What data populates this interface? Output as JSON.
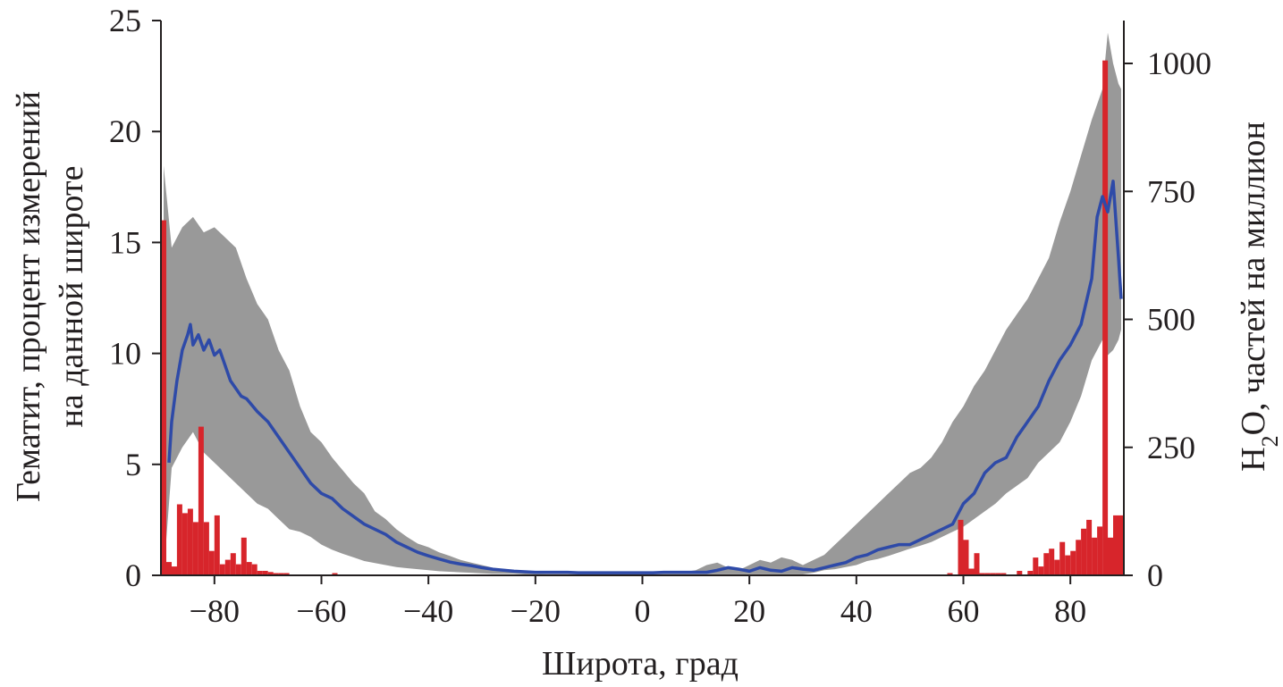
{
  "chart_data": {
    "type": "bar+line",
    "xlabel": "Широта, град",
    "ylabel_left_lines": [
      "Гематит, процент измерений",
      "на данной широте"
    ],
    "ylabel_right": {
      "base": "H",
      "sub": "2",
      "rest": "O, частей на миллион"
    },
    "xlim": [
      -90,
      90
    ],
    "ylim_left": [
      0,
      25
    ],
    "ylim_right": [
      0,
      1000
    ],
    "x_ticks": [
      {
        "v": -80,
        "t": "−80"
      },
      {
        "v": -60,
        "t": "−60"
      },
      {
        "v": -40,
        "t": "−40"
      },
      {
        "v": -20,
        "t": "−20"
      },
      {
        "v": 0,
        "t": "0"
      },
      {
        "v": 20,
        "t": "20"
      },
      {
        "v": 40,
        "t": "40"
      },
      {
        "v": 60,
        "t": "60"
      },
      {
        "v": 80,
        "t": "80"
      }
    ],
    "y_left_ticks": [
      {
        "v": 0,
        "t": "0"
      },
      {
        "v": 5,
        "t": "5"
      },
      {
        "v": 10,
        "t": "10"
      },
      {
        "v": 15,
        "t": "15"
      },
      {
        "v": 20,
        "t": "20"
      },
      {
        "v": 25,
        "t": "25"
      }
    ],
    "y_right_ticks": [
      {
        "v": 0,
        "t": "0"
      },
      {
        "v": 250,
        "t": "250"
      },
      {
        "v": 500,
        "t": "500"
      },
      {
        "v": 750,
        "t": "750"
      },
      {
        "v": 1000,
        "t": "1000"
      }
    ],
    "series": [
      {
        "kind": "bar",
        "axis": "left",
        "color": "#d7252b",
        "bar_width": 1.0,
        "points": [
          {
            "x": -89.5,
            "y": 16.0
          },
          {
            "x": -88.5,
            "y": 0.6
          },
          {
            "x": -87.5,
            "y": 0.4
          },
          {
            "x": -86.5,
            "y": 3.2
          },
          {
            "x": -85.5,
            "y": 2.8
          },
          {
            "x": -84.5,
            "y": 3.0
          },
          {
            "x": -83.5,
            "y": 2.4
          },
          {
            "x": -82.5,
            "y": 6.7
          },
          {
            "x": -81.5,
            "y": 2.4
          },
          {
            "x": -80.5,
            "y": 1.1
          },
          {
            "x": -79.5,
            "y": 2.7
          },
          {
            "x": -78.5,
            "y": 0.5
          },
          {
            "x": -77.5,
            "y": 0.7
          },
          {
            "x": -76.5,
            "y": 1.0
          },
          {
            "x": -75.5,
            "y": 0.5
          },
          {
            "x": -74.5,
            "y": 1.7
          },
          {
            "x": -73.5,
            "y": 0.6
          },
          {
            "x": -72.5,
            "y": 0.5
          },
          {
            "x": -71.5,
            "y": 0.2
          },
          {
            "x": -70.5,
            "y": 0.2
          },
          {
            "x": -69.5,
            "y": 0.15
          },
          {
            "x": -68.5,
            "y": 0.1
          },
          {
            "x": -67.5,
            "y": 0.1
          },
          {
            "x": -66.5,
            "y": 0.1
          },
          {
            "x": -57.5,
            "y": 0.1
          },
          {
            "x": 57.5,
            "y": 0.1
          },
          {
            "x": 59.5,
            "y": 2.5
          },
          {
            "x": 60.5,
            "y": 1.6
          },
          {
            "x": 61.5,
            "y": 0.3
          },
          {
            "x": 62.5,
            "y": 1.0
          },
          {
            "x": 63.5,
            "y": 0.1
          },
          {
            "x": 64.5,
            "y": 0.1
          },
          {
            "x": 65.5,
            "y": 0.1
          },
          {
            "x": 66.5,
            "y": 0.1
          },
          {
            "x": 67.5,
            "y": 0.1
          },
          {
            "x": 70.5,
            "y": 0.2
          },
          {
            "x": 72.5,
            "y": 0.2
          },
          {
            "x": 73.5,
            "y": 0.8
          },
          {
            "x": 74.5,
            "y": 0.4
          },
          {
            "x": 75.5,
            "y": 1.0
          },
          {
            "x": 76.5,
            "y": 1.2
          },
          {
            "x": 77.5,
            "y": 0.7
          },
          {
            "x": 78.5,
            "y": 1.5
          },
          {
            "x": 79.5,
            "y": 0.9
          },
          {
            "x": 80.5,
            "y": 1.1
          },
          {
            "x": 81.5,
            "y": 1.6
          },
          {
            "x": 82.5,
            "y": 2.1
          },
          {
            "x": 83.5,
            "y": 2.5
          },
          {
            "x": 84.5,
            "y": 1.7
          },
          {
            "x": 85.5,
            "y": 2.2
          },
          {
            "x": 86.5,
            "y": 23.2
          },
          {
            "x": 87.5,
            "y": 1.7
          },
          {
            "x": 88.5,
            "y": 2.7
          },
          {
            "x": 89.5,
            "y": 2.7
          }
        ]
      },
      {
        "kind": "band",
        "axis": "right",
        "color": "#999999",
        "x": [
          -89.5,
          -88,
          -86,
          -84,
          -82,
          -80,
          -78,
          -76,
          -74,
          -72,
          -70,
          -68,
          -66,
          -64,
          -62,
          -60,
          -58,
          -56,
          -54,
          -52,
          -50,
          -48,
          -46,
          -44,
          -42,
          -40,
          -38,
          -36,
          -34,
          -32,
          -30,
          -28,
          -26,
          -24,
          -22,
          -20,
          -18,
          -16,
          -14,
          -12,
          -10,
          -8,
          -6,
          -4,
          -2,
          0,
          2,
          4,
          6,
          8,
          10,
          12,
          14,
          16,
          18,
          20,
          22,
          24,
          26,
          28,
          30,
          32,
          34,
          36,
          38,
          40,
          42,
          44,
          46,
          48,
          50,
          52,
          54,
          56,
          58,
          60,
          62,
          64,
          66,
          68,
          70,
          72,
          74,
          76,
          78,
          80,
          82,
          84,
          86,
          87,
          88,
          89,
          89.5
        ],
        "upper": [
          800,
          640,
          680,
          700,
          670,
          680,
          660,
          640,
          580,
          530,
          500,
          440,
          400,
          330,
          280,
          260,
          230,
          205,
          180,
          160,
          125,
          110,
          90,
          75,
          62,
          55,
          45,
          38,
          30,
          25,
          20,
          15,
          10,
          8,
          5,
          4,
          3,
          3,
          3,
          3,
          3,
          3,
          5,
          5,
          5,
          5,
          5,
          5,
          5,
          7,
          10,
          20,
          25,
          15,
          10,
          20,
          30,
          25,
          35,
          30,
          20,
          30,
          40,
          60,
          80,
          100,
          120,
          140,
          160,
          180,
          200,
          210,
          230,
          260,
          300,
          330,
          370,
          400,
          440,
          480,
          510,
          540,
          580,
          620,
          690,
          750,
          820,
          890,
          950,
          1060,
          1000,
          960,
          950
        ],
        "lower": [
          0,
          210,
          250,
          280,
          240,
          220,
          200,
          180,
          160,
          140,
          130,
          110,
          90,
          85,
          75,
          60,
          50,
          42,
          35,
          28,
          24,
          20,
          16,
          14,
          12,
          10,
          8,
          7,
          6,
          5,
          4,
          3,
          3,
          3,
          2,
          2,
          2,
          2,
          2,
          2,
          2,
          2,
          2,
          2,
          2,
          2,
          2,
          2,
          2,
          2,
          2,
          2,
          2,
          2,
          2,
          2,
          2,
          2,
          2,
          2,
          2,
          5,
          10,
          12,
          16,
          20,
          28,
          32,
          38,
          45,
          52,
          58,
          65,
          75,
          85,
          95,
          110,
          125,
          140,
          160,
          175,
          190,
          220,
          240,
          260,
          300,
          350,
          420,
          460,
          430,
          440,
          460,
          480
        ]
      },
      {
        "kind": "line",
        "axis": "right",
        "color": "#2e4aa8",
        "x": [
          -88.5,
          -88,
          -87,
          -86,
          -85,
          -84.5,
          -84,
          -83,
          -82,
          -81,
          -80,
          -79,
          -78,
          -77,
          -76,
          -75,
          -74,
          -72,
          -70,
          -68,
          -66,
          -64,
          -62,
          -60,
          -58,
          -56,
          -54,
          -52,
          -50,
          -48,
          -46,
          -44,
          -42,
          -40,
          -38,
          -36,
          -34,
          -32,
          -30,
          -28,
          -26,
          -24,
          -22,
          -20,
          -18,
          -16,
          -14,
          -12,
          -10,
          -8,
          -6,
          -4,
          -2,
          0,
          2,
          4,
          6,
          8,
          10,
          12,
          14,
          16,
          18,
          20,
          22,
          24,
          26,
          28,
          30,
          32,
          34,
          36,
          38,
          40,
          42,
          44,
          46,
          48,
          50,
          52,
          54,
          56,
          58,
          60,
          62,
          64,
          66,
          68,
          70,
          72,
          74,
          76,
          78,
          80,
          82,
          84,
          85,
          86,
          87,
          88,
          89,
          89.5
        ],
        "y": [
          220,
          300,
          380,
          440,
          470,
          490,
          450,
          470,
          440,
          460,
          430,
          440,
          410,
          380,
          365,
          350,
          345,
          320,
          300,
          270,
          240,
          210,
          180,
          160,
          150,
          130,
          115,
          100,
          90,
          80,
          65,
          55,
          45,
          38,
          32,
          26,
          22,
          19,
          15,
          12,
          10,
          8,
          7,
          6,
          6,
          6,
          6,
          5,
          5,
          5,
          5,
          5,
          5,
          5,
          5,
          6,
          6,
          6,
          6,
          6,
          10,
          15,
          12,
          8,
          15,
          10,
          8,
          15,
          12,
          10,
          15,
          20,
          25,
          35,
          40,
          50,
          55,
          60,
          60,
          70,
          80,
          90,
          100,
          140,
          160,
          200,
          220,
          230,
          270,
          300,
          330,
          380,
          420,
          450,
          490,
          580,
          700,
          740,
          710,
          770,
          620,
          540
        ]
      }
    ]
  }
}
